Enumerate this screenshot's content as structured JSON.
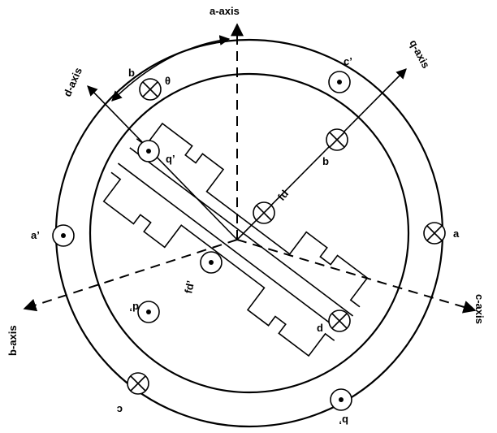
{
  "diagram": {
    "axes": {
      "a_axis": "a-axis",
      "b_axis": "b-axis",
      "c_axis": "c-axis",
      "d_axis": "d-axis",
      "q_axis": "q-axis"
    },
    "angle_label": "θ",
    "conductors": {
      "stator_a": "a",
      "stator_a_prime": "a’",
      "stator_b": "b",
      "stator_b_prime": "b’",
      "stator_c": "c",
      "stator_c_prime": "c’",
      "rotor_d": "d",
      "rotor_d_prime": "d’",
      "rotor_q": "q",
      "rotor_q_prime": "q’",
      "field": "fd",
      "field_prime": "fd’"
    }
  }
}
